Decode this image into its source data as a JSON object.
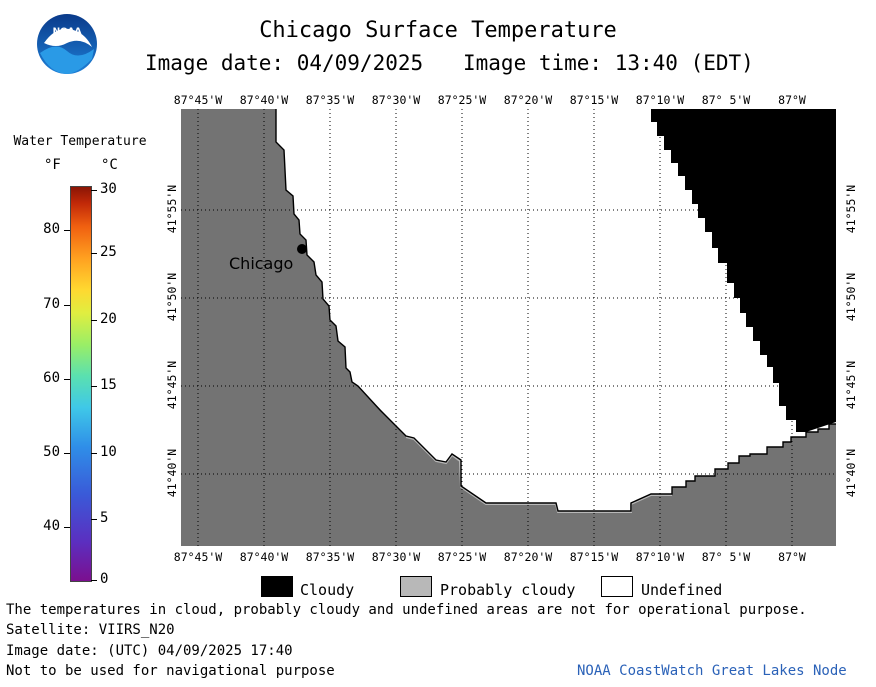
{
  "header": {
    "title": "Chicago Surface Temperature",
    "image_date_label": "Image date: 04/09/2025",
    "image_time_label": "Image time: 13:40 (EDT)"
  },
  "logo": {
    "text": "NOAA"
  },
  "colorbar": {
    "title": "Water Temperature",
    "unit_f": "°F",
    "unit_c": "°C",
    "f_ticks": [
      "80",
      "70",
      "60",
      "50",
      "40"
    ],
    "c_ticks": [
      "30",
      "25",
      "20",
      "15",
      "10",
      "5",
      "0"
    ]
  },
  "map": {
    "lon_labels": [
      "87°45'W",
      "87°40'W",
      "87°35'W",
      "87°30'W",
      "87°25'W",
      "87°20'W",
      "87°15'W",
      "87°10'W",
      "87° 5'W",
      "87°W"
    ],
    "lat_labels": [
      "41°55'N",
      "41°50'N",
      "41°45'N",
      "41°40'N"
    ],
    "city_label": "Chicago",
    "colors": {
      "land": "#737373",
      "cloudy": "#000000",
      "undefined": "#ffffff",
      "probably_cloudy": "#b8b8b8"
    }
  },
  "legend": {
    "cloudy": "Cloudy",
    "probably_cloudy": "Probably cloudy",
    "undefined": "Undefined"
  },
  "footer": {
    "disclaimer": "The temperatures in cloud, probably cloudy and undefined areas are not for operational purpose.",
    "satellite": "Satellite: VIIRS_N20",
    "utc_date": "Image date: (UTC) 04/09/2025  17:40",
    "nav_note": "Not to be used for navigational purpose",
    "credit": "NOAA CoastWatch Great Lakes Node"
  }
}
